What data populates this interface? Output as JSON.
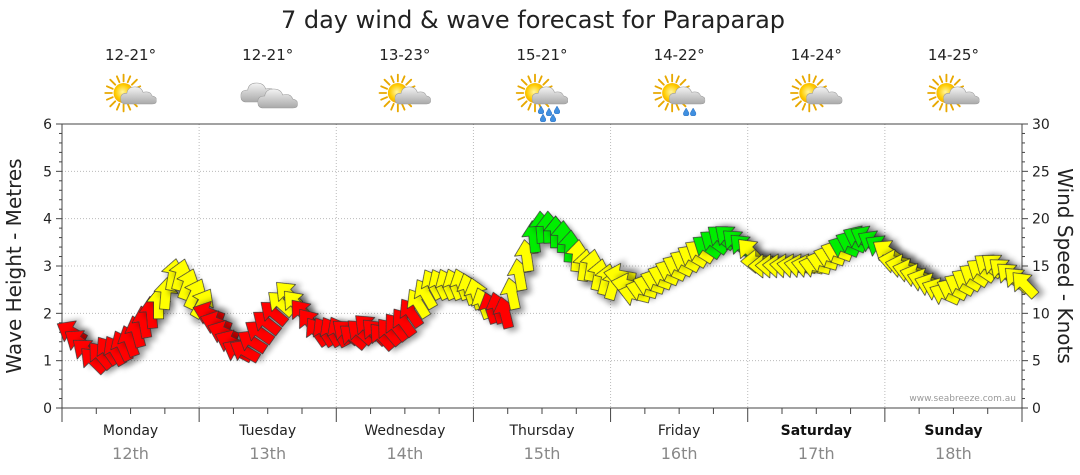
{
  "chart_data": {
    "type": "line",
    "title": "7 day wind & wave forecast for Paraparap",
    "ylabel_left": "Wave Height - Metres",
    "ylabel_right": "Wind Speed - Knots",
    "ylim_left": [
      0,
      6
    ],
    "ylim_right": [
      0,
      30
    ],
    "yticks_left": [
      "0",
      "1",
      "2",
      "3",
      "4",
      "5",
      "6"
    ],
    "yticks_right": [
      "0",
      "5",
      "10",
      "15",
      "20",
      "25",
      "30"
    ],
    "credit": "www.seabreeze.com.au",
    "days": [
      {
        "name": "Monday",
        "date": "12th",
        "temp": "12-21°",
        "weather": "partly-cloudy",
        "bold": false
      },
      {
        "name": "Tuesday",
        "date": "13th",
        "temp": "12-21°",
        "weather": "cloudy",
        "bold": false
      },
      {
        "name": "Wednesday",
        "date": "14th",
        "temp": "13-23°",
        "weather": "partly-cloudy",
        "bold": false
      },
      {
        "name": "Thursday",
        "date": "15th",
        "temp": "15-21°",
        "weather": "showers",
        "bold": false
      },
      {
        "name": "Friday",
        "date": "16th",
        "temp": "14-22°",
        "weather": "shower",
        "bold": false
      },
      {
        "name": "Saturday",
        "date": "17th",
        "temp": "14-24°",
        "weather": "partly-cloudy",
        "bold": true
      },
      {
        "name": "Sunday",
        "date": "18th",
        "temp": "14-25°",
        "weather": "partly-cloudy",
        "bold": true
      }
    ],
    "wind_colors": {
      "light": "#ff0000",
      "moderate": "#ffff00",
      "strong": "#00ee00"
    },
    "wind_series": {
      "name": "Wind Speed (knots)",
      "direction_deg": [
        120,
        125,
        130,
        135,
        140,
        145,
        150,
        155,
        160,
        165,
        170,
        175,
        180,
        185,
        190,
        195,
        200,
        205,
        210,
        110,
        110,
        112,
        115,
        118,
        120,
        122,
        125,
        128,
        130,
        132,
        135,
        138,
        140,
        142,
        145,
        148,
        150,
        152,
        130,
        130,
        132,
        134,
        136,
        138,
        140,
        142,
        144,
        146,
        148,
        150,
        152,
        154,
        156,
        158,
        160,
        162,
        164,
        160,
        162,
        164,
        166,
        168,
        170,
        172,
        174,
        176,
        178,
        180,
        182,
        184,
        186,
        188,
        190,
        192,
        194,
        196,
        100,
        102,
        104,
        106,
        108,
        110,
        112,
        114,
        116,
        118,
        120,
        122,
        124,
        126,
        128,
        130,
        132,
        134,
        136,
        90,
        90,
        92,
        94,
        96,
        98,
        100,
        102,
        104,
        106,
        108,
        110,
        112,
        114,
        116,
        118,
        120,
        122,
        124,
        100,
        102,
        104,
        106,
        108,
        110,
        112,
        114,
        116,
        118,
        120,
        122,
        124,
        126,
        128,
        130,
        132,
        134,
        136
      ],
      "values": [
        8,
        7,
        6,
        5,
        5.5,
        6,
        6,
        6.5,
        7,
        8,
        9,
        10,
        11,
        12,
        14,
        14,
        13,
        12,
        11,
        10,
        9,
        8,
        7,
        6,
        6,
        7,
        8,
        9,
        10,
        11,
        12,
        11,
        10,
        9,
        8,
        8,
        8,
        8,
        8,
        7.5,
        8,
        8.5,
        8,
        7.5,
        8,
        8.5,
        9,
        10,
        11,
        12,
        13,
        13,
        13,
        13,
        13,
        12.5,
        12,
        11,
        10.5,
        10.5,
        10,
        12,
        14,
        16,
        18,
        19,
        19,
        18.5,
        18,
        17,
        16,
        15,
        15,
        14,
        13.5,
        13,
        14,
        13,
        12,
        12.5,
        13,
        13.5,
        14,
        14.5,
        15,
        15.5,
        16,
        16.5,
        17,
        17.5,
        18,
        18,
        17.5,
        17,
        16.5,
        15.5,
        15,
        15,
        15,
        15,
        15,
        15,
        15,
        15,
        15.5,
        16,
        16.5,
        17,
        17.5,
        18,
        18,
        17.5,
        17,
        16.5,
        15.5,
        15,
        14.5,
        14,
        13.5,
        13,
        12.5,
        12,
        12.5,
        13,
        13.5,
        14,
        14.5,
        15,
        15,
        14.5,
        14,
        13.5,
        13
      ]
    }
  }
}
